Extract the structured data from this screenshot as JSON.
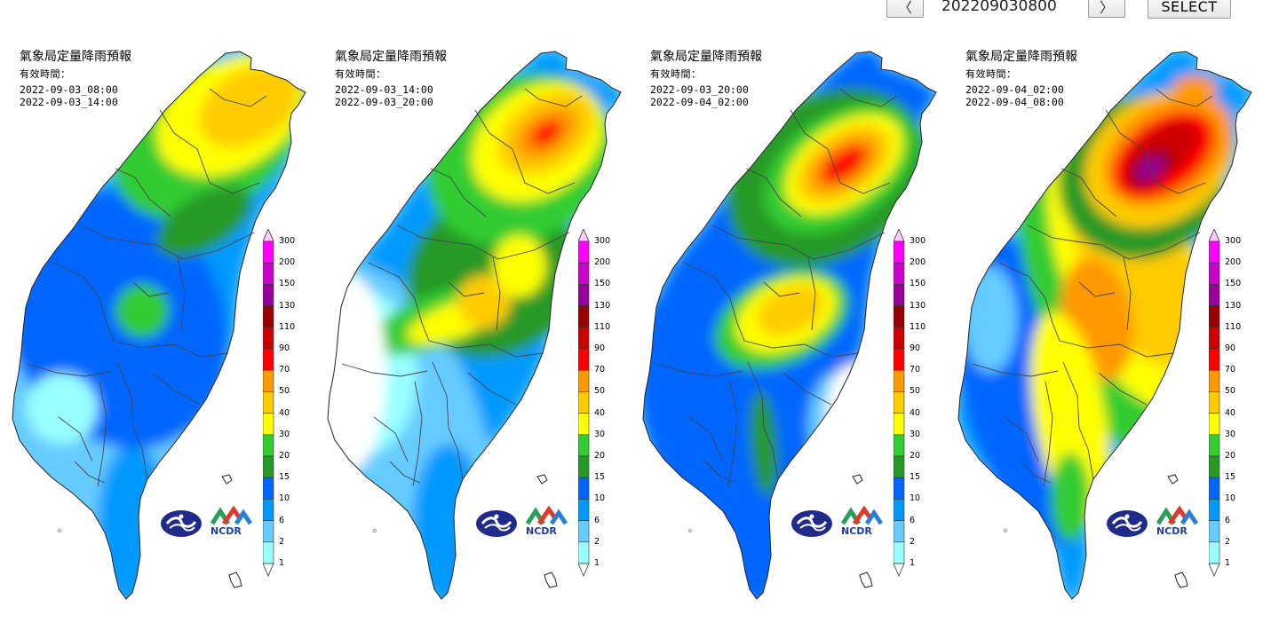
{
  "nav": {
    "prev_label": "〈",
    "date_value": "202209030800",
    "next_label": "〉",
    "select_label": "SELECT"
  },
  "panels": [
    {
      "title": "氣象局定量降雨預報",
      "valid_label": "有效時間：",
      "start": "2022-09-03_08:00",
      "end": "2022-09-03_14:00"
    },
    {
      "title": "氣象局定量降雨預報",
      "valid_label": "有效時間：",
      "start": "2022-09-03_14:00",
      "end": "2022-09-03_20:00"
    },
    {
      "title": "氣象局定量降雨預報",
      "valid_label": "有效時間：",
      "start": "2022-09-03_20:00",
      "end": "2022-09-04_02:00"
    },
    {
      "title": "氣象局定量降雨預報",
      "valid_label": "有效時間：",
      "start": "2022-09-04_02:00",
      "end": "2022-09-04_08:00"
    }
  ],
  "legend": {
    "levels": [
      "300",
      "200",
      "150",
      "130",
      "110",
      "90",
      "70",
      "50",
      "40",
      "30",
      "20",
      "15",
      "10",
      "6",
      "2",
      "1"
    ],
    "colors": [
      "#ffccff",
      "#ff00ff",
      "#cc00cc",
      "#990099",
      "#990000",
      "#cc0000",
      "#ff0000",
      "#ff9900",
      "#ffcc00",
      "#ffff00",
      "#33cc33",
      "#269926",
      "#0066ff",
      "#0099ff",
      "#66ccff",
      "#99ffff"
    ]
  },
  "logos": {
    "ncdr_text": "NCDR"
  }
}
